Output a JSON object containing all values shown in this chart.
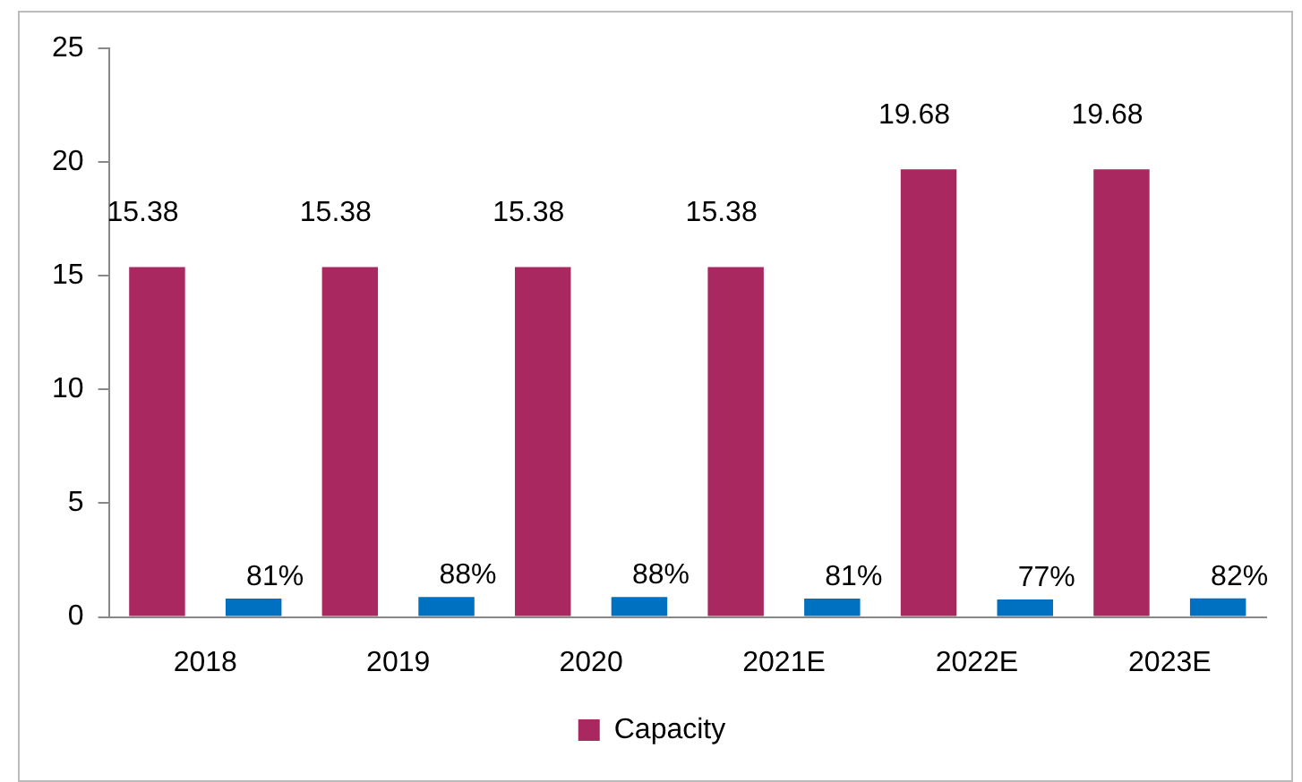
{
  "chart_data": {
    "type": "bar",
    "categories": [
      "2018",
      "2019",
      "2020",
      "2021E",
      "2022E",
      "2023E"
    ],
    "series": [
      {
        "name": "Capacity",
        "color": "#a8285f",
        "values": [
          15.38,
          15.38,
          15.38,
          15.38,
          19.68,
          19.68
        ],
        "value_labels": [
          "15.38",
          "15.38",
          "15.38",
          "15.38",
          "19.68",
          "19.68"
        ]
      },
      {
        "color": "#0070c0",
        "values": [
          0.81,
          0.88,
          0.88,
          0.81,
          0.77,
          0.82
        ],
        "value_labels": [
          "81%",
          "88%",
          "88%",
          "81%",
          "77%",
          "82%"
        ]
      }
    ],
    "ylim": [
      0,
      25
    ],
    "yticks": [
      0,
      5,
      10,
      15,
      20,
      25
    ],
    "grid": false,
    "legend": "bottom"
  }
}
